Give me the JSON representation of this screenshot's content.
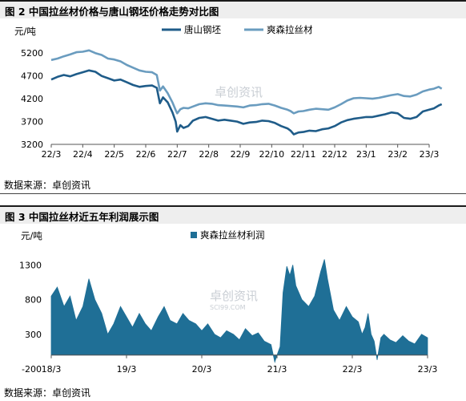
{
  "figure1": {
    "title": "图 2 中国拉丝材价格与唐山钢坯价格走势对比图",
    "source": "数据来源：卓创资讯",
    "chart_data": {
      "type": "line",
      "unit_label": "元/吨",
      "x_ticks": [
        "22/3",
        "22/4",
        "22/5",
        "22/6",
        "22/7",
        "22/8",
        "22/9",
        "22/10",
        "22/11",
        "22/12",
        "23/1",
        "23/2",
        "23/3"
      ],
      "y_ticks": [
        3200,
        3700,
        4200,
        4700,
        5200
      ],
      "ylim": [
        3200,
        5450
      ],
      "grid": false,
      "legend_position": "top",
      "watermark": "卓创资讯",
      "series": [
        {
          "name": "唐山钢坯",
          "color": "#1f5c89",
          "points": [
            [
              0,
              4620
            ],
            [
              0.2,
              4680
            ],
            [
              0.4,
              4720
            ],
            [
              0.6,
              4690
            ],
            [
              0.8,
              4740
            ],
            [
              1.0,
              4780
            ],
            [
              1.2,
              4820
            ],
            [
              1.4,
              4790
            ],
            [
              1.6,
              4700
            ],
            [
              1.8,
              4650
            ],
            [
              2.0,
              4600
            ],
            [
              2.2,
              4620
            ],
            [
              2.4,
              4560
            ],
            [
              2.6,
              4500
            ],
            [
              2.8,
              4460
            ],
            [
              3.0,
              4480
            ],
            [
              3.2,
              4490
            ],
            [
              3.35,
              4440
            ],
            [
              3.45,
              4100
            ],
            [
              3.55,
              4230
            ],
            [
              3.7,
              4120
            ],
            [
              3.85,
              3900
            ],
            [
              3.95,
              3700
            ],
            [
              4.0,
              3480
            ],
            [
              4.1,
              3620
            ],
            [
              4.2,
              3560
            ],
            [
              4.35,
              3600
            ],
            [
              4.5,
              3720
            ],
            [
              4.7,
              3780
            ],
            [
              4.9,
              3800
            ],
            [
              5.1,
              3760
            ],
            [
              5.3,
              3720
            ],
            [
              5.5,
              3740
            ],
            [
              5.7,
              3720
            ],
            [
              5.9,
              3700
            ],
            [
              6.1,
              3650
            ],
            [
              6.3,
              3680
            ],
            [
              6.5,
              3690
            ],
            [
              6.7,
              3720
            ],
            [
              6.9,
              3710
            ],
            [
              7.1,
              3670
            ],
            [
              7.3,
              3600
            ],
            [
              7.5,
              3550
            ],
            [
              7.6,
              3500
            ],
            [
              7.7,
              3420
            ],
            [
              7.85,
              3460
            ],
            [
              8.0,
              3470
            ],
            [
              8.2,
              3500
            ],
            [
              8.4,
              3490
            ],
            [
              8.6,
              3530
            ],
            [
              8.8,
              3550
            ],
            [
              9.0,
              3600
            ],
            [
              9.2,
              3680
            ],
            [
              9.4,
              3730
            ],
            [
              9.6,
              3760
            ],
            [
              9.8,
              3780
            ],
            [
              10.0,
              3800
            ],
            [
              10.2,
              3800
            ],
            [
              10.4,
              3830
            ],
            [
              10.6,
              3860
            ],
            [
              10.8,
              3900
            ],
            [
              11.0,
              3880
            ],
            [
              11.2,
              3780
            ],
            [
              11.4,
              3760
            ],
            [
              11.6,
              3800
            ],
            [
              11.8,
              3920
            ],
            [
              12.0,
              3960
            ],
            [
              12.15,
              3990
            ],
            [
              12.3,
              4050
            ],
            [
              12.4,
              4080
            ]
          ]
        },
        {
          "name": "爽森拉丝材",
          "color": "#6a9cbf",
          "points": [
            [
              0,
              5050
            ],
            [
              0.2,
              5080
            ],
            [
              0.4,
              5130
            ],
            [
              0.6,
              5170
            ],
            [
              0.8,
              5220
            ],
            [
              1.0,
              5230
            ],
            [
              1.2,
              5260
            ],
            [
              1.4,
              5200
            ],
            [
              1.6,
              5160
            ],
            [
              1.8,
              5080
            ],
            [
              2.0,
              5060
            ],
            [
              2.2,
              5020
            ],
            [
              2.4,
              4940
            ],
            [
              2.6,
              4880
            ],
            [
              2.8,
              4820
            ],
            [
              3.0,
              4790
            ],
            [
              3.2,
              4780
            ],
            [
              3.35,
              4720
            ],
            [
              3.45,
              4380
            ],
            [
              3.55,
              4470
            ],
            [
              3.7,
              4320
            ],
            [
              3.85,
              4120
            ],
            [
              3.95,
              3950
            ],
            [
              4.0,
              3880
            ],
            [
              4.1,
              3970
            ],
            [
              4.2,
              4000
            ],
            [
              4.35,
              3990
            ],
            [
              4.5,
              4030
            ],
            [
              4.7,
              4080
            ],
            [
              4.9,
              4100
            ],
            [
              5.1,
              4090
            ],
            [
              5.3,
              4060
            ],
            [
              5.5,
              4050
            ],
            [
              5.7,
              4040
            ],
            [
              5.9,
              4030
            ],
            [
              6.1,
              4010
            ],
            [
              6.3,
              4050
            ],
            [
              6.5,
              4060
            ],
            [
              6.7,
              4080
            ],
            [
              6.9,
              4090
            ],
            [
              7.1,
              4050
            ],
            [
              7.3,
              4000
            ],
            [
              7.5,
              3960
            ],
            [
              7.6,
              3930
            ],
            [
              7.7,
              3880
            ],
            [
              7.85,
              3920
            ],
            [
              8.0,
              3930
            ],
            [
              8.2,
              3960
            ],
            [
              8.4,
              3980
            ],
            [
              8.6,
              3970
            ],
            [
              8.8,
              3960
            ],
            [
              9.0,
              4010
            ],
            [
              9.2,
              4080
            ],
            [
              9.4,
              4160
            ],
            [
              9.6,
              4210
            ],
            [
              9.8,
              4220
            ],
            [
              10.0,
              4210
            ],
            [
              10.2,
              4200
            ],
            [
              10.4,
              4220
            ],
            [
              10.6,
              4250
            ],
            [
              10.8,
              4280
            ],
            [
              11.0,
              4300
            ],
            [
              11.2,
              4260
            ],
            [
              11.4,
              4250
            ],
            [
              11.6,
              4290
            ],
            [
              11.8,
              4360
            ],
            [
              12.0,
              4400
            ],
            [
              12.15,
              4420
            ],
            [
              12.3,
              4460
            ],
            [
              12.4,
              4420
            ]
          ]
        }
      ]
    }
  },
  "figure2": {
    "title": "图 3 中国拉丝材近五年利润展示图",
    "source": "数据来源：卓创资讯",
    "chart_data": {
      "type": "area",
      "unit_label": "元/吨",
      "x_ticks": [
        "18/3",
        "19/3",
        "20/3",
        "21/3",
        "22/3",
        "23/3"
      ],
      "y_ticks": [
        -200,
        300,
        800,
        1300
      ],
      "ylim": [
        -200,
        1500
      ],
      "grid": false,
      "legend_position": "top",
      "watermark": "卓创资讯",
      "watermark_sub": "SCI99.COM",
      "series": [
        {
          "name": "爽森拉丝材利润",
          "color": "#1f6f96",
          "points": [
            [
              0,
              850
            ],
            [
              0.08,
              980
            ],
            [
              0.17,
              700
            ],
            [
              0.25,
              850
            ],
            [
              0.33,
              500
            ],
            [
              0.42,
              700
            ],
            [
              0.5,
              1100
            ],
            [
              0.58,
              800
            ],
            [
              0.67,
              600
            ],
            [
              0.75,
              300
            ],
            [
              0.83,
              450
            ],
            [
              0.92,
              700
            ],
            [
              1.0,
              550
            ],
            [
              1.08,
              400
            ],
            [
              1.17,
              600
            ],
            [
              1.25,
              450
            ],
            [
              1.33,
              350
            ],
            [
              1.42,
              550
            ],
            [
              1.5,
              700
            ],
            [
              1.58,
              500
            ],
            [
              1.67,
              450
            ],
            [
              1.75,
              600
            ],
            [
              1.83,
              500
            ],
            [
              1.92,
              450
            ],
            [
              2.0,
              350
            ],
            [
              2.08,
              450
            ],
            [
              2.17,
              300
            ],
            [
              2.25,
              250
            ],
            [
              2.33,
              350
            ],
            [
              2.42,
              300
            ],
            [
              2.5,
              220
            ],
            [
              2.58,
              380
            ],
            [
              2.67,
              280
            ],
            [
              2.75,
              320
            ],
            [
              2.83,
              200
            ],
            [
              2.92,
              150
            ],
            [
              2.97,
              -100
            ],
            [
              3.0,
              0
            ],
            [
              3.04,
              120
            ],
            [
              3.08,
              900
            ],
            [
              3.13,
              1280
            ],
            [
              3.17,
              1150
            ],
            [
              3.21,
              1300
            ],
            [
              3.25,
              1000
            ],
            [
              3.33,
              800
            ],
            [
              3.42,
              700
            ],
            [
              3.5,
              850
            ],
            [
              3.58,
              1200
            ],
            [
              3.63,
              1380
            ],
            [
              3.67,
              1100
            ],
            [
              3.75,
              650
            ],
            [
              3.83,
              500
            ],
            [
              3.92,
              700
            ],
            [
              4.0,
              550
            ],
            [
              4.08,
              480
            ],
            [
              4.13,
              300
            ],
            [
              4.17,
              400
            ],
            [
              4.21,
              600
            ],
            [
              4.25,
              300
            ],
            [
              4.29,
              200
            ],
            [
              4.33,
              -70
            ],
            [
              4.38,
              250
            ],
            [
              4.42,
              300
            ],
            [
              4.5,
              220
            ],
            [
              4.58,
              180
            ],
            [
              4.67,
              280
            ],
            [
              4.75,
              200
            ],
            [
              4.83,
              160
            ],
            [
              4.92,
              300
            ],
            [
              5.0,
              250
            ]
          ]
        }
      ]
    }
  }
}
